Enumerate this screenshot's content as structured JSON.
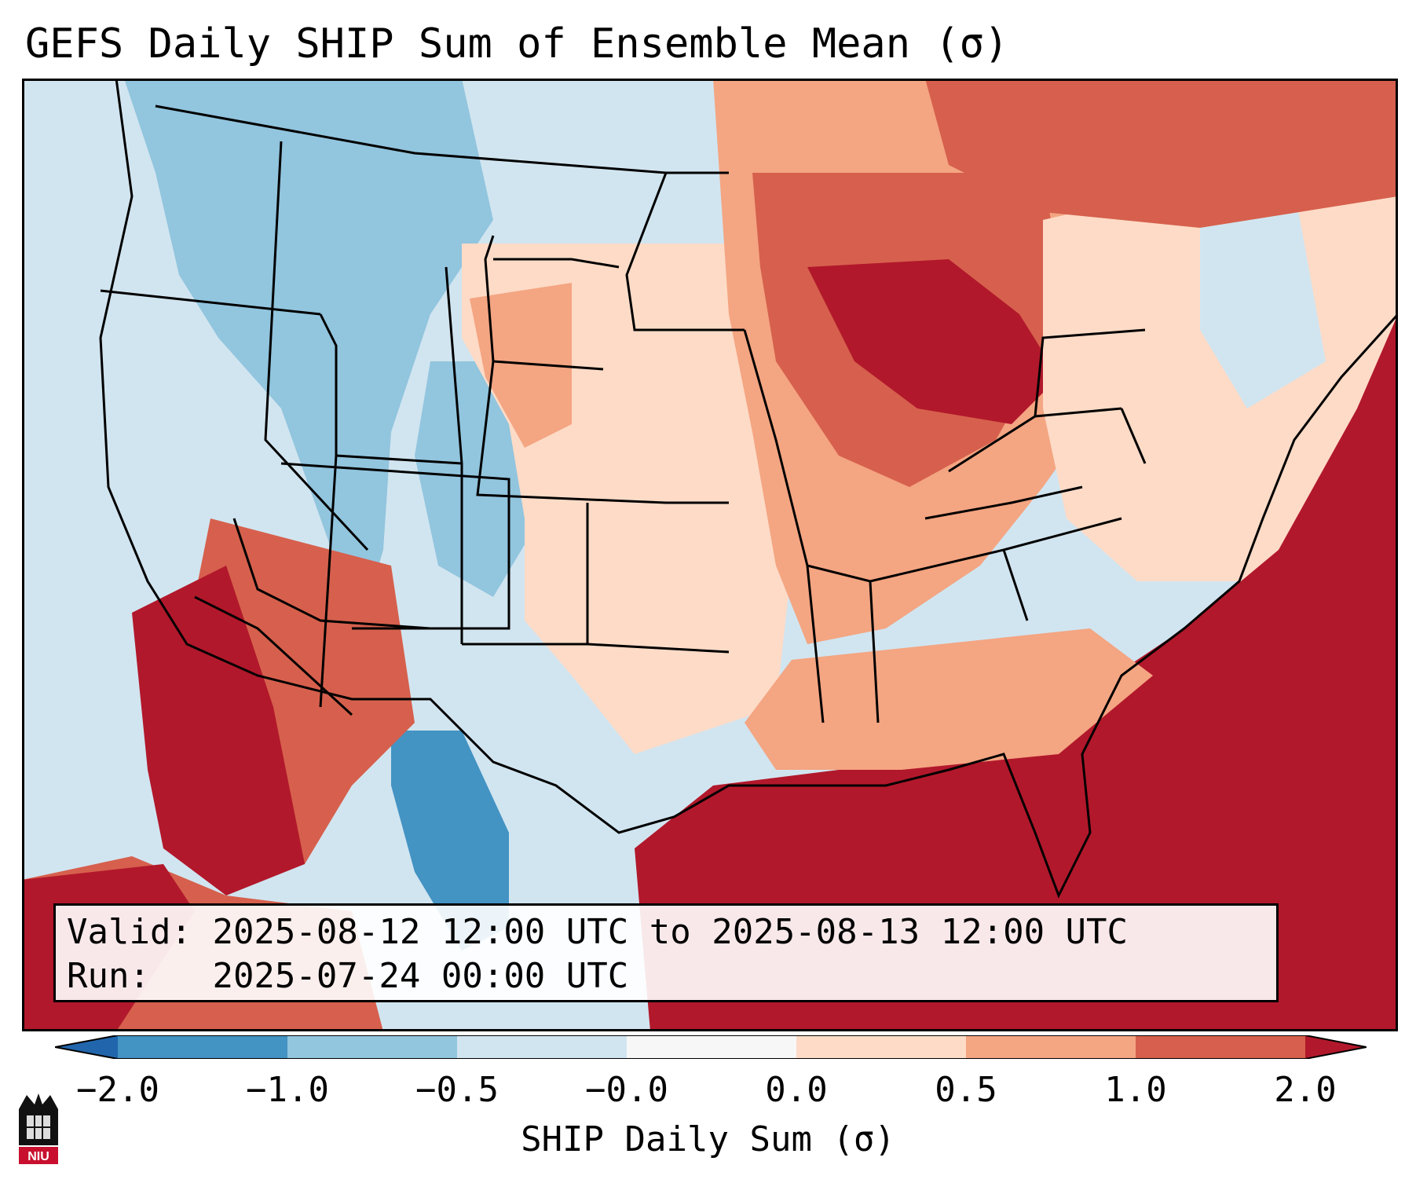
{
  "title": "GEFS Daily SHIP Sum of Ensemble Mean (σ)",
  "info": {
    "valid_label": "Valid:",
    "valid_value": "2025-08-12 12:00 UTC to 2025-08-13 12:00 UTC",
    "run_label": "Run:",
    "run_value": "2025-07-24 00:00 UTC"
  },
  "colorbar": {
    "label": "SHIP Daily Sum (σ)",
    "ticks": [
      "−2.0",
      "−1.0",
      "−0.5",
      "−0.0",
      "0.0",
      "0.5",
      "1.0",
      "2.0"
    ],
    "colors": [
      "#4393c3",
      "#92c5de",
      "#d1e5f0",
      "#f7f7f7",
      "#fddbc7",
      "#f4a582",
      "#d6604d",
      "#b2182b"
    ],
    "extend_low_color": "#2166ac",
    "extend_high_color": "#b2182b"
  },
  "logo": {
    "text": "NIU",
    "icon": "niu-logo-icon"
  },
  "map": {
    "region": "contiguous-united-states",
    "ocean_color": "#d1e5f0",
    "boundary_color": "#000000",
    "field_colors": {
      "strong_positive": "#b2182b",
      "positive": "#d6604d",
      "weak_positive": "#f4a582",
      "slight_positive": "#fddbc7",
      "slight_negative": "#d1e5f0",
      "negative": "#92c5de",
      "strong_negative": "#4393c3"
    }
  }
}
